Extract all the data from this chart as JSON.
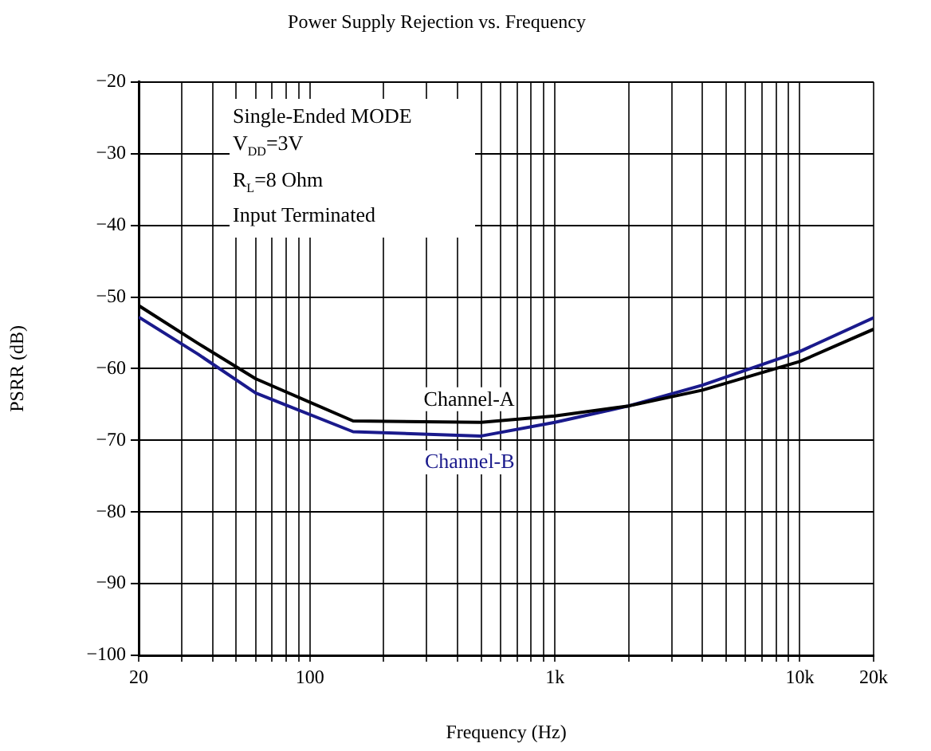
{
  "chart_data": {
    "type": "line",
    "title": "Power Supply Rejection vs. Frequency",
    "xlabel": "Frequency (Hz)",
    "ylabel": "PSRR (dB)",
    "annotations": [
      "Single-Ended MODE",
      "V$_{DD}$=3V",
      "R$_{L}$=8 Ohm",
      "Input Terminated"
    ],
    "x": [
      20,
      35,
      60,
      150,
      500,
      1000,
      2000,
      4000,
      10000,
      20000
    ],
    "series": [
      {
        "name": "Channel-A",
        "color": "#000000",
        "values": [
          -51.2,
          -56.5,
          -61.4,
          -67.3,
          -67.5,
          -66.6,
          -65.2,
          -63.0,
          -59.0,
          -54.5
        ]
      },
      {
        "name": "Channel-B",
        "color": "#1a1a8c",
        "values": [
          -52.8,
          -58.0,
          -63.4,
          -68.8,
          -69.4,
          -67.5,
          -65.2,
          -62.3,
          -57.6,
          -52.9
        ]
      }
    ],
    "log": "x",
    "xlim": [
      20,
      20000
    ],
    "xticks": [
      20,
      {
        "value": 30,
        "label": null
      },
      {
        "value": 40,
        "label": null
      },
      {
        "value": 50,
        "label": null
      },
      {
        "value": 60,
        "label": null
      },
      {
        "value": 70,
        "label": null
      },
      {
        "value": 80,
        "label": null
      },
      {
        "value": 90,
        "label": null
      },
      100,
      {
        "value": 200,
        "label": null
      },
      {
        "value": 300,
        "label": null
      },
      {
        "value": 400,
        "label": null
      },
      {
        "value": 500,
        "label": null
      },
      {
        "value": 600,
        "label": null
      },
      {
        "value": 700,
        "label": null
      },
      {
        "value": 800,
        "label": null
      },
      {
        "value": 900,
        "label": null
      },
      {
        "value": 1000,
        "label": "1k"
      },
      {
        "value": 2000,
        "label": null
      },
      {
        "value": 3000,
        "label": null
      },
      {
        "value": 4000,
        "label": null
      },
      {
        "value": 5000,
        "label": null
      },
      {
        "value": 6000,
        "label": null
      },
      {
        "value": 7000,
        "label": null
      },
      {
        "value": 8000,
        "label": null
      },
      {
        "value": 9000,
        "label": null
      },
      {
        "value": 10000,
        "label": "10k"
      },
      {
        "value": 20000,
        "label": "20k"
      }
    ],
    "ylim": [
      -100,
      -20
    ],
    "yticks": [
      -100,
      -90,
      -80,
      -70,
      -60,
      -50,
      -40,
      -30,
      -20
    ],
    "grid": true,
    "legend": false,
    "marker": "none",
    "line_style": "solid"
  }
}
